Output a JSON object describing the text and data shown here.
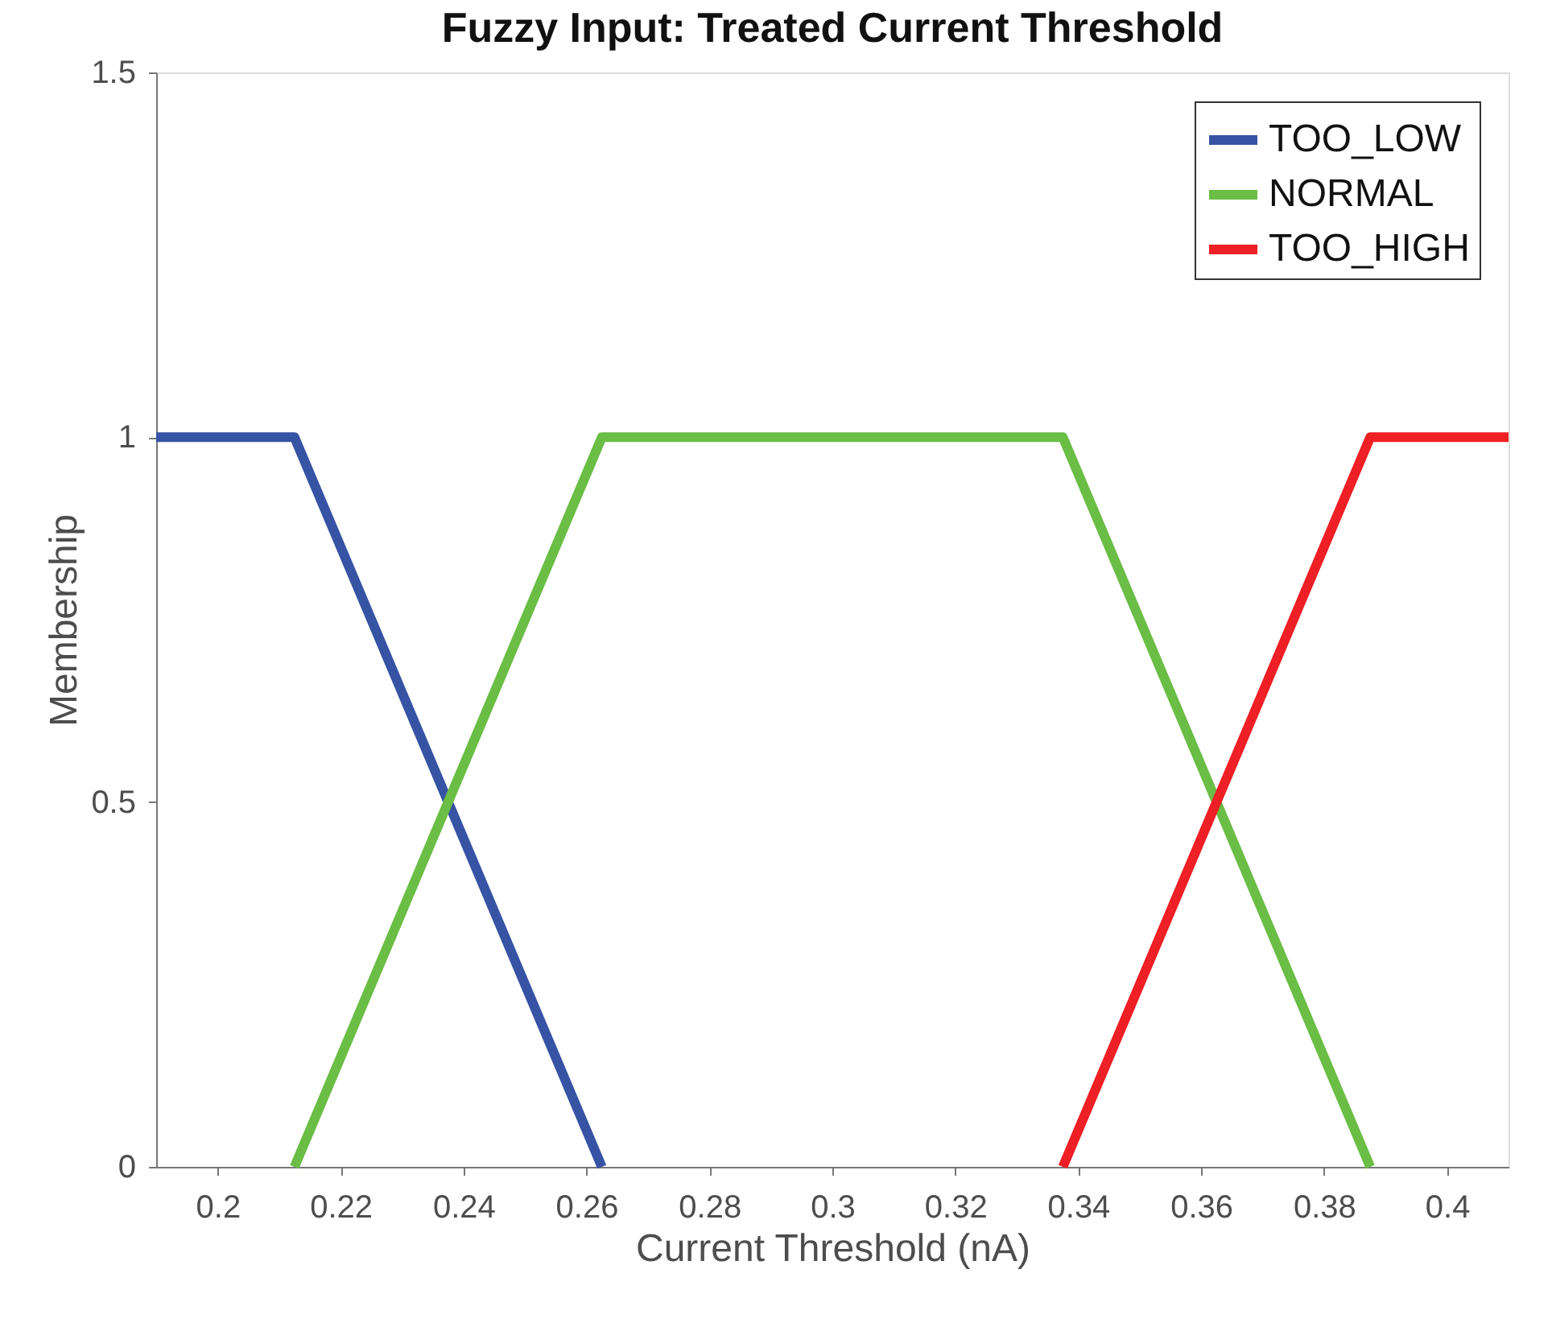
{
  "chart_data": {
    "type": "line",
    "title": "Fuzzy Input: Treated Current Threshold",
    "xlabel": "Current Threshold (nA)",
    "ylabel": "Membership",
    "series": [
      {
        "name": "TOO_LOW",
        "color": "#3653a4",
        "x": [
          0.19,
          0.2125,
          0.2625
        ],
        "values": [
          1,
          1,
          0
        ]
      },
      {
        "name": "NORMAL",
        "color": "#6abd45",
        "x": [
          0.2125,
          0.2625,
          0.3375,
          0.3875
        ],
        "values": [
          0,
          1,
          1,
          0
        ]
      },
      {
        "name": "TOO_HIGH",
        "color": "#ee1f25",
        "x": [
          0.3375,
          0.3875,
          0.41
        ],
        "values": [
          0,
          1,
          1
        ]
      }
    ],
    "xlim": [
      0.19,
      0.41
    ],
    "xticks": [
      0.2,
      0.22,
      0.24,
      0.26,
      0.28,
      0.3,
      0.32,
      0.34,
      0.36,
      0.38,
      0.4
    ],
    "ylim": [
      0,
      1.5
    ],
    "yticks": [
      0,
      0.5,
      1,
      1.5
    ],
    "grid": false,
    "legend": "top right",
    "line_style": "solid",
    "marker": "none"
  }
}
